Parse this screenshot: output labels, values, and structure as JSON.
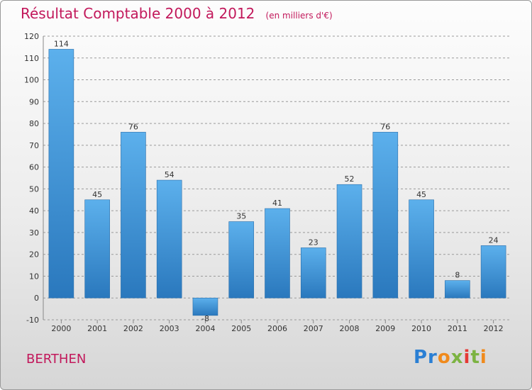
{
  "header": {
    "title": "Résultat Comptable 2000 à 2012",
    "unit": "(en milliers d'€)"
  },
  "footer": {
    "place": "BERTHEN",
    "logo_text": "Proxiti"
  },
  "colors": {
    "bar": "#3a8fd6",
    "title": "#c2185b",
    "grid": "#9a9a9a"
  },
  "chart_data": {
    "type": "bar",
    "title": "Résultat Comptable 2000 à 2012",
    "subtitle": "(en milliers d'€)",
    "xlabel": "",
    "ylabel": "",
    "categories": [
      "2000",
      "2001",
      "2002",
      "2003",
      "2004",
      "2005",
      "2006",
      "2007",
      "2008",
      "2009",
      "2010",
      "2011",
      "2012"
    ],
    "values": [
      114,
      45,
      76,
      54,
      -8,
      35,
      41,
      23,
      52,
      76,
      45,
      8,
      24
    ],
    "data_labels": [
      "114",
      "45",
      "76",
      "54",
      "-8",
      "35",
      "41",
      "23",
      "52",
      "76",
      "45",
      "8",
      "24"
    ],
    "ylim": [
      -10,
      120
    ],
    "yticks": [
      -10,
      0,
      10,
      20,
      30,
      40,
      50,
      60,
      70,
      80,
      90,
      100,
      110,
      120
    ],
    "grid": true,
    "legend": "none"
  }
}
